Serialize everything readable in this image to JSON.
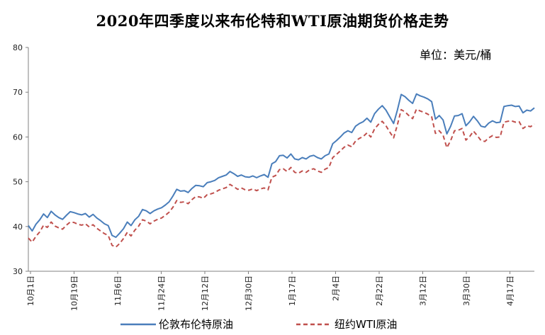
{
  "chart_data": {
    "type": "line",
    "title": "2020年四季度以来布伦特和WTI原油期货价格走势",
    "unit": "单位：美元/桶",
    "ylim": [
      30,
      80
    ],
    "yticks": [
      30,
      40,
      50,
      60,
      70,
      80
    ],
    "x_tick_labels": [
      "10月1日",
      "10月19日",
      "11月6日",
      "11月24日",
      "12月12日",
      "12月30日",
      "1月17日",
      "2月4日",
      "2月22日",
      "3月12日",
      "3月30日",
      "4月17日"
    ],
    "legend_position": "bottom",
    "grid": false,
    "series": [
      {
        "name": "伦敦布伦特原油",
        "color": "#4a7ebb",
        "dash": "",
        "values": [
          40.2,
          39.0,
          40.5,
          41.5,
          42.8,
          42.0,
          43.4,
          42.6,
          42.0,
          41.6,
          42.5,
          43.3,
          43.1,
          42.8,
          42.6,
          42.9,
          42.1,
          42.7,
          41.9,
          41.3,
          40.6,
          40.2,
          38.0,
          37.6,
          38.5,
          39.5,
          41.0,
          40.2,
          41.5,
          42.3,
          43.8,
          43.5,
          42.9,
          43.5,
          43.9,
          44.2,
          44.8,
          45.5,
          46.8,
          48.3,
          47.9,
          48.0,
          47.6,
          48.5,
          49.2,
          49.1,
          48.9,
          49.8,
          50.0,
          50.3,
          50.9,
          51.2,
          51.5,
          52.3,
          51.8,
          51.2,
          51.5,
          51.1,
          51.0,
          51.3,
          50.9,
          51.3,
          51.6,
          51.0,
          54.0,
          54.5,
          55.8,
          55.9,
          55.3,
          56.2,
          55.1,
          54.9,
          55.4,
          55.1,
          55.7,
          55.9,
          55.4,
          55.1,
          55.8,
          56.2,
          58.5,
          59.2,
          60.0,
          60.9,
          61.4,
          61.0,
          62.4,
          63.0,
          63.4,
          64.2,
          63.3,
          65.2,
          66.2,
          67.0,
          66.0,
          64.5,
          63.0,
          66.0,
          69.5,
          69.0,
          68.2,
          67.5,
          69.6,
          69.2,
          68.9,
          68.5,
          67.9,
          64.0,
          64.8,
          63.8,
          60.7,
          62.4,
          64.7,
          64.8,
          65.2,
          62.5,
          63.4,
          64.6,
          63.6,
          62.4,
          62.2,
          63.1,
          63.6,
          63.2,
          63.3,
          66.8,
          67.0,
          67.1,
          66.8,
          66.9,
          65.4,
          66.0,
          65.8,
          66.5
        ]
      },
      {
        "name": "纽约WTI原油",
        "color": "#c0504d",
        "dash": "6,4",
        "values": [
          37.4,
          36.5,
          37.8,
          38.8,
          40.3,
          39.8,
          41.0,
          40.1,
          39.7,
          39.4,
          40.3,
          41.0,
          40.9,
          40.5,
          40.3,
          40.6,
          39.9,
          40.4,
          39.6,
          39.0,
          38.4,
          38.0,
          35.8,
          35.4,
          36.2,
          37.3,
          38.7,
          37.9,
          39.2,
          40.1,
          41.5,
          41.2,
          40.6,
          41.2,
          41.6,
          41.9,
          42.5,
          43.2,
          44.3,
          45.8,
          45.4,
          45.5,
          45.1,
          46.0,
          46.7,
          46.6,
          46.3,
          47.1,
          47.3,
          47.6,
          48.1,
          48.4,
          48.7,
          49.4,
          48.9,
          48.3,
          48.6,
          48.2,
          48.1,
          48.4,
          48.0,
          48.4,
          48.6,
          48.2,
          51.0,
          51.4,
          52.7,
          52.9,
          52.3,
          53.2,
          52.1,
          51.9,
          52.4,
          52.1,
          52.7,
          52.9,
          52.4,
          52.1,
          52.8,
          53.2,
          55.4,
          56.1,
          56.9,
          57.7,
          58.2,
          57.8,
          59.1,
          59.7,
          60.1,
          60.9,
          60.0,
          61.8,
          62.8,
          63.5,
          62.5,
          61.1,
          59.8,
          62.7,
          66.1,
          65.6,
          64.8,
          64.1,
          66.2,
          65.8,
          65.5,
          65.1,
          64.5,
          60.8,
          61.4,
          60.4,
          57.6,
          59.2,
          61.4,
          61.5,
          61.9,
          59.3,
          60.1,
          61.3,
          60.3,
          59.2,
          59.0,
          59.8,
          60.3,
          59.9,
          60.0,
          63.3,
          63.5,
          63.6,
          63.3,
          63.4,
          61.9,
          62.5,
          62.3,
          62.9
        ]
      }
    ]
  }
}
